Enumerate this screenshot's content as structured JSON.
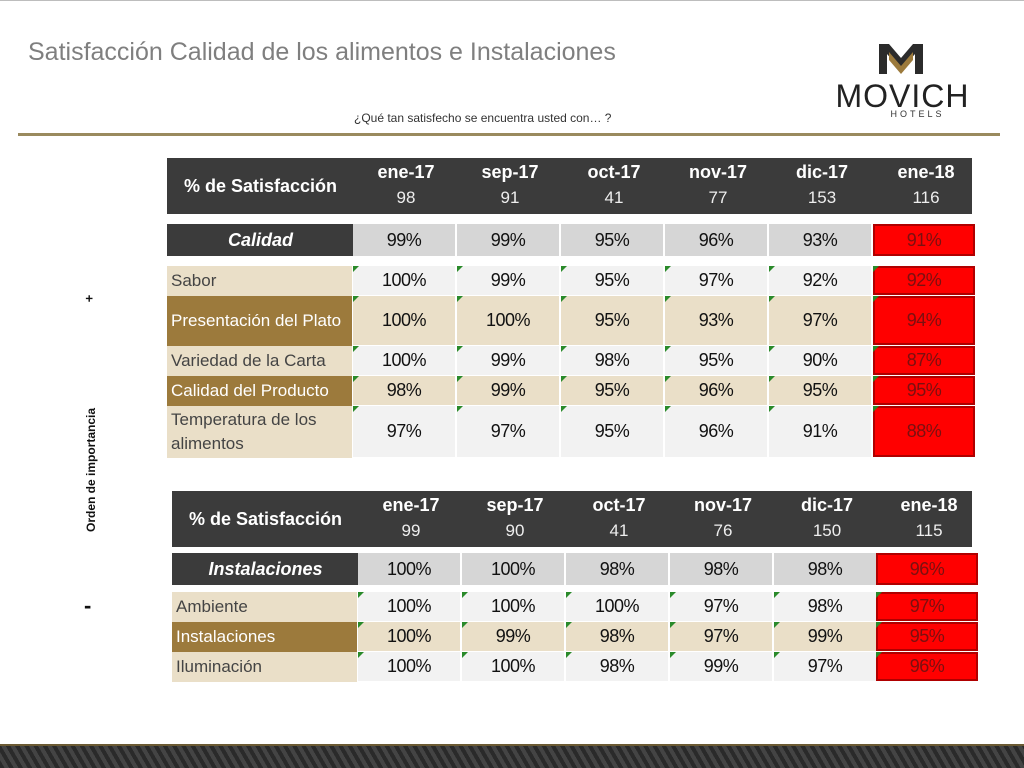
{
  "header": {
    "title": "Satisfacción Calidad de los alimentos e Instalaciones",
    "subtitle": "¿Qué tan satisfecho se encuentra usted con… ?"
  },
  "logo": {
    "brand": "MOVICH",
    "sub": "HOTELS"
  },
  "side": {
    "label": "Orden de importancia",
    "plus": "+",
    "minus": "-"
  },
  "colors": {
    "header_bg": "#3b3b3b",
    "tan": "#eadfc8",
    "bronze": "#9c7a3c",
    "alert_red": "#ff0000",
    "flag_green": "#2a8a2a"
  },
  "table1": {
    "header_label": "% de Satisfacción",
    "periods": [
      {
        "month": "ene-17",
        "n": "98"
      },
      {
        "month": "sep-17",
        "n": "91"
      },
      {
        "month": "oct-17",
        "n": "41"
      },
      {
        "month": "nov-17",
        "n": "77"
      },
      {
        "month": "dic-17",
        "n": "153"
      },
      {
        "month": "ene-18",
        "n": "116"
      }
    ],
    "category": {
      "label": "Calidad",
      "values": [
        "99%",
        "99%",
        "95%",
        "96%",
        "93%",
        "91%"
      ]
    },
    "rows": [
      {
        "label": "Sabor",
        "values": [
          "100%",
          "99%",
          "95%",
          "97%",
          "92%",
          "92%"
        ]
      },
      {
        "label": "Presentación del Plato",
        "values": [
          "100%",
          "100%",
          "95%",
          "93%",
          "97%",
          "94%"
        ]
      },
      {
        "label": "Variedad de la Carta",
        "values": [
          "100%",
          "99%",
          "98%",
          "95%",
          "90%",
          "87%"
        ]
      },
      {
        "label": "Calidad del Producto",
        "values": [
          "98%",
          "99%",
          "95%",
          "96%",
          "95%",
          "95%"
        ]
      },
      {
        "label": "Temperatura de los alimentos",
        "values": [
          "97%",
          "97%",
          "95%",
          "96%",
          "91%",
          "88%"
        ]
      }
    ]
  },
  "table2": {
    "header_label": "% de Satisfacción",
    "periods": [
      {
        "month": "ene-17",
        "n": "99"
      },
      {
        "month": "sep-17",
        "n": "90"
      },
      {
        "month": "oct-17",
        "n": "41"
      },
      {
        "month": "nov-17",
        "n": "76"
      },
      {
        "month": "dic-17",
        "n": "150"
      },
      {
        "month": "ene-18",
        "n": "115"
      }
    ],
    "category": {
      "label": "Instalaciones",
      "values": [
        "100%",
        "100%",
        "98%",
        "98%",
        "98%",
        "96%"
      ]
    },
    "rows": [
      {
        "label": "Ambiente",
        "values": [
          "100%",
          "100%",
          "100%",
          "97%",
          "98%",
          "97%"
        ]
      },
      {
        "label": "Instalaciones",
        "values": [
          "100%",
          "99%",
          "98%",
          "97%",
          "99%",
          "95%"
        ]
      },
      {
        "label": "Iluminación",
        "values": [
          "100%",
          "100%",
          "98%",
          "99%",
          "97%",
          "96%"
        ]
      }
    ]
  }
}
